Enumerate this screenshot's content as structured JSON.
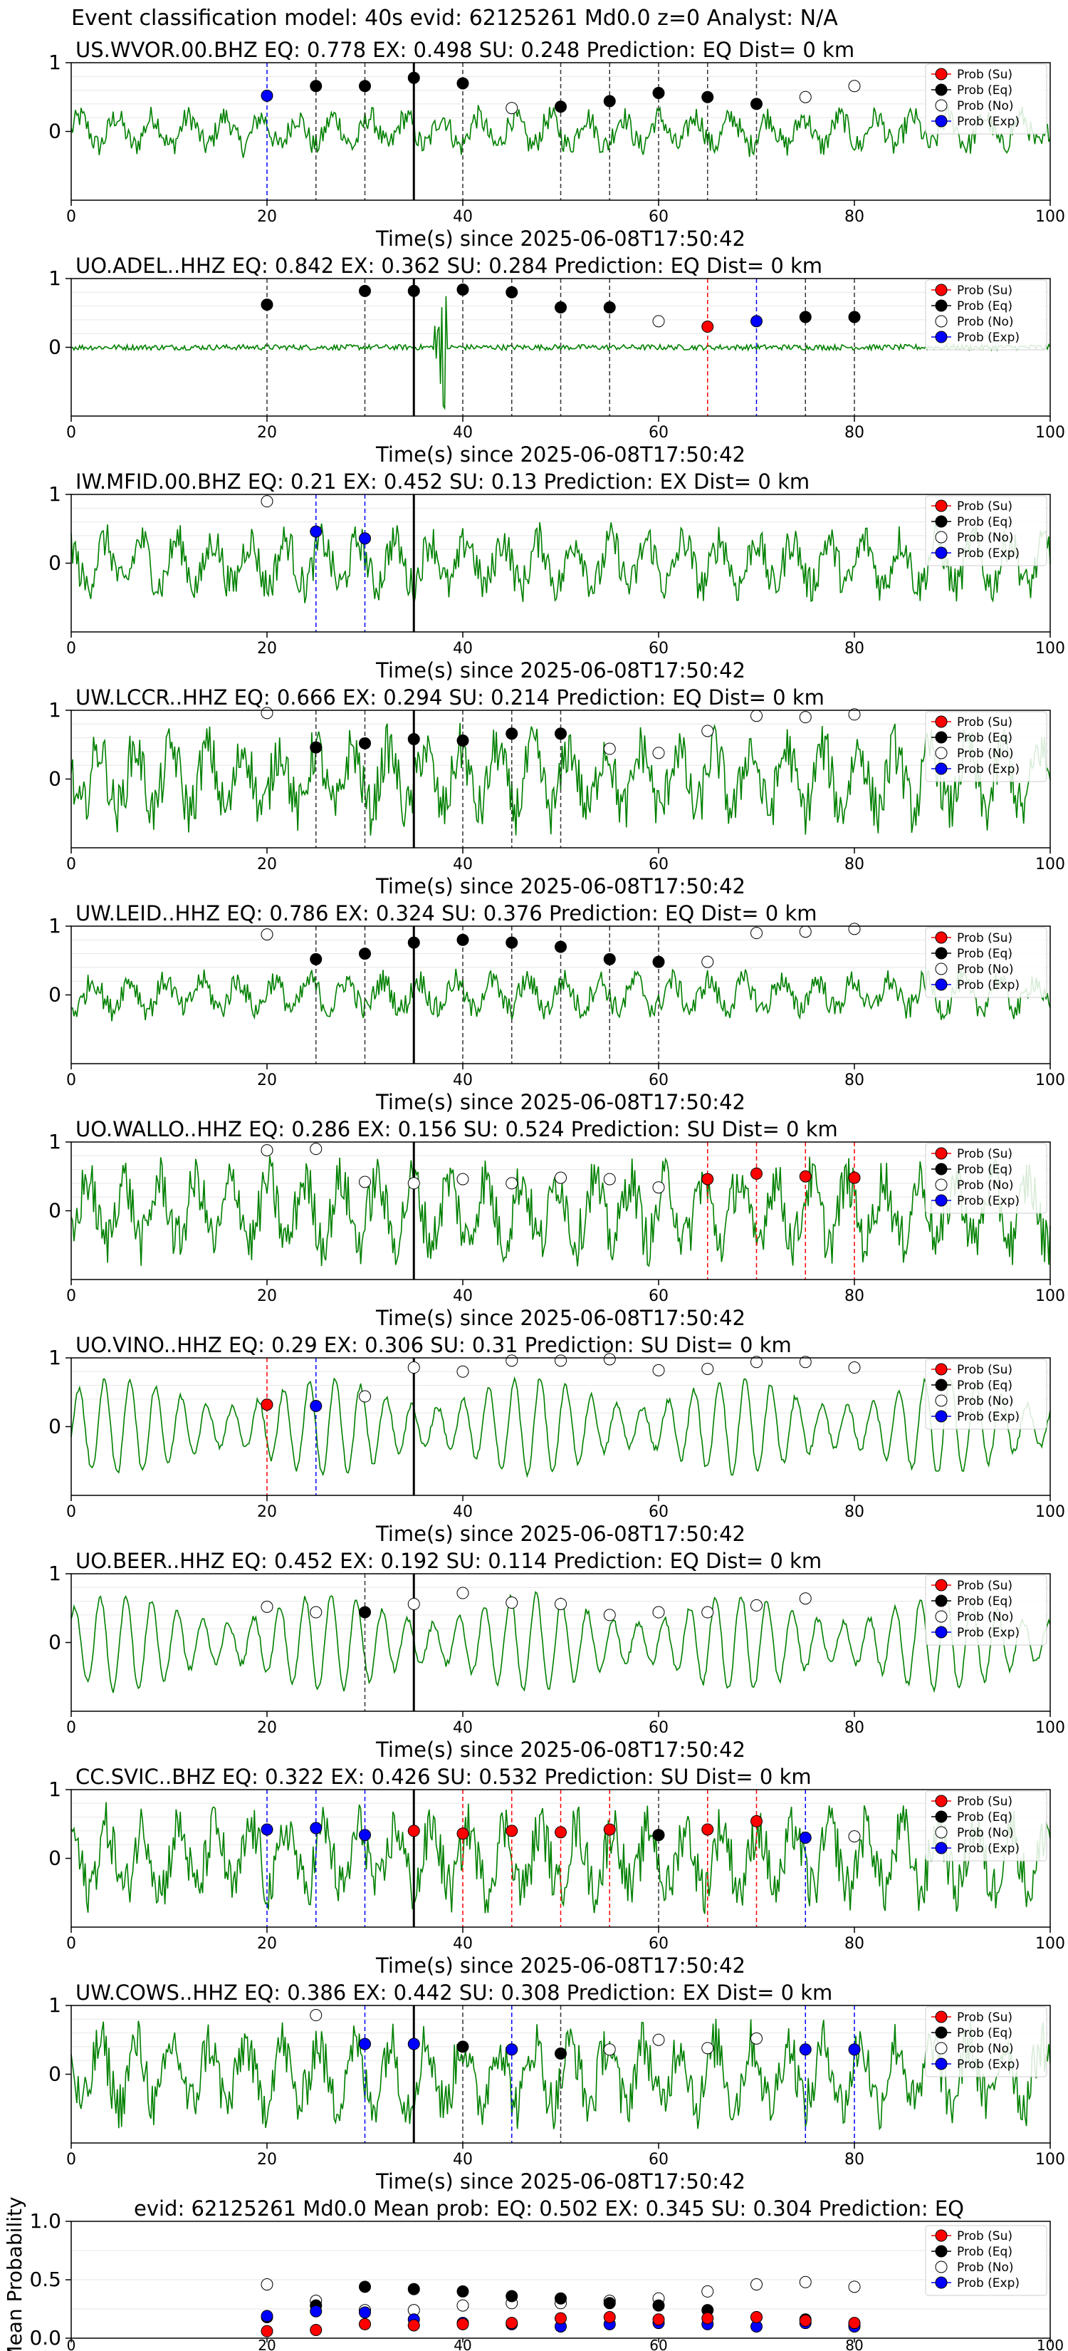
{
  "figure_title": "Event classification model: 40s evid: 62125261 Md0.0 z=0 Analyst: N/A",
  "xlabel": "Time(s) since 2025-06-08T17:50:42",
  "x_ticks": [
    0,
    20,
    40,
    60,
    80,
    100
  ],
  "legend": [
    "Prob (Su)",
    "Prob (Eq)",
    "Prob (No)",
    "Prob (Exp)"
  ],
  "colors": {
    "su": "#ff0000",
    "eq": "#000000",
    "no": "#ffffff",
    "exp": "#0000ff",
    "trace": "#008000"
  },
  "chart_data": [
    {
      "type": "scatter",
      "title": "US.WVOR.00.BHZ   EQ: 0.778  EX: 0.498  SU: 0.248   Prediction: EQ    Dist= 0 km",
      "xlim": [
        0,
        100
      ],
      "ylim": [
        -1,
        1
      ],
      "y_ticks": [
        0,
        1
      ],
      "arrival_line": 35,
      "noise": "low",
      "points": [
        {
          "x": 20,
          "y": 0.52,
          "cls": "exp"
        },
        {
          "x": 25,
          "y": 0.66,
          "cls": "eq"
        },
        {
          "x": 30,
          "y": 0.66,
          "cls": "eq"
        },
        {
          "x": 35,
          "y": 0.78,
          "cls": "eq"
        },
        {
          "x": 40,
          "y": 0.7,
          "cls": "eq"
        },
        {
          "x": 45,
          "y": 0.34,
          "cls": "no"
        },
        {
          "x": 50,
          "y": 0.36,
          "cls": "eq"
        },
        {
          "x": 55,
          "y": 0.44,
          "cls": "eq"
        },
        {
          "x": 60,
          "y": 0.56,
          "cls": "eq"
        },
        {
          "x": 65,
          "y": 0.5,
          "cls": "eq"
        },
        {
          "x": 70,
          "y": 0.4,
          "cls": "eq"
        },
        {
          "x": 75,
          "y": 0.5,
          "cls": "no"
        },
        {
          "x": 80,
          "y": 0.66,
          "cls": "no"
        }
      ]
    },
    {
      "type": "scatter",
      "title": "UO.ADEL..HHZ   EQ: 0.842  EX: 0.362  SU: 0.284   Prediction: EQ    Dist= 0 km",
      "xlim": [
        0,
        100
      ],
      "ylim": [
        -1,
        1
      ],
      "y_ticks": [
        0,
        1
      ],
      "arrival_line": 35,
      "noise": "flat",
      "points": [
        {
          "x": 20,
          "y": 0.62,
          "cls": "eq"
        },
        {
          "x": 30,
          "y": 0.82,
          "cls": "eq"
        },
        {
          "x": 35,
          "y": 0.82,
          "cls": "eq"
        },
        {
          "x": 40,
          "y": 0.84,
          "cls": "eq"
        },
        {
          "x": 45,
          "y": 0.8,
          "cls": "eq"
        },
        {
          "x": 50,
          "y": 0.58,
          "cls": "eq"
        },
        {
          "x": 55,
          "y": 0.58,
          "cls": "eq"
        },
        {
          "x": 60,
          "y": 0.38,
          "cls": "no"
        },
        {
          "x": 65,
          "y": 0.3,
          "cls": "su"
        },
        {
          "x": 70,
          "y": 0.38,
          "cls": "exp"
        },
        {
          "x": 75,
          "y": 0.44,
          "cls": "eq"
        },
        {
          "x": 80,
          "y": 0.44,
          "cls": "eq"
        }
      ]
    },
    {
      "type": "scatter",
      "title": "IW.MFID.00.BHZ   EQ: 0.21  EX: 0.452  SU: 0.13   Prediction: EX    Dist= 0 km",
      "xlim": [
        0,
        100
      ],
      "ylim": [
        -1,
        1
      ],
      "y_ticks": [
        0,
        1
      ],
      "arrival_line": 35,
      "noise": "mid",
      "points": [
        {
          "x": 20,
          "y": 0.9,
          "cls": "no"
        },
        {
          "x": 25,
          "y": 0.46,
          "cls": "exp"
        },
        {
          "x": 30,
          "y": 0.36,
          "cls": "exp"
        }
      ]
    },
    {
      "type": "scatter",
      "title": "UW.LCCR..HHZ   EQ: 0.666  EX: 0.294  SU: 0.214   Prediction: EQ    Dist= 0 km",
      "xlim": [
        0,
        100
      ],
      "ylim": [
        -1,
        1
      ],
      "y_ticks": [
        0,
        1
      ],
      "arrival_line": 35,
      "noise": "high",
      "points": [
        {
          "x": 20,
          "y": 0.96,
          "cls": "no"
        },
        {
          "x": 25,
          "y": 0.46,
          "cls": "eq"
        },
        {
          "x": 30,
          "y": 0.52,
          "cls": "eq"
        },
        {
          "x": 35,
          "y": 0.58,
          "cls": "eq"
        },
        {
          "x": 40,
          "y": 0.56,
          "cls": "eq"
        },
        {
          "x": 45,
          "y": 0.66,
          "cls": "eq"
        },
        {
          "x": 50,
          "y": 0.66,
          "cls": "eq"
        },
        {
          "x": 55,
          "y": 0.44,
          "cls": "no"
        },
        {
          "x": 60,
          "y": 0.38,
          "cls": "no"
        },
        {
          "x": 65,
          "y": 0.7,
          "cls": "no"
        },
        {
          "x": 70,
          "y": 0.92,
          "cls": "no"
        },
        {
          "x": 75,
          "y": 0.9,
          "cls": "no"
        },
        {
          "x": 80,
          "y": 0.94,
          "cls": "no"
        }
      ]
    },
    {
      "type": "scatter",
      "title": "UW.LEID..HHZ   EQ: 0.786  EX: 0.324  SU: 0.376   Prediction: EQ    Dist= 0 km",
      "xlim": [
        0,
        100
      ],
      "ylim": [
        -1,
        1
      ],
      "y_ticks": [
        0,
        1
      ],
      "arrival_line": 35,
      "noise": "low",
      "points": [
        {
          "x": 20,
          "y": 0.88,
          "cls": "no"
        },
        {
          "x": 25,
          "y": 0.52,
          "cls": "eq"
        },
        {
          "x": 30,
          "y": 0.6,
          "cls": "eq"
        },
        {
          "x": 35,
          "y": 0.76,
          "cls": "eq"
        },
        {
          "x": 40,
          "y": 0.8,
          "cls": "eq"
        },
        {
          "x": 45,
          "y": 0.76,
          "cls": "eq"
        },
        {
          "x": 50,
          "y": 0.7,
          "cls": "eq"
        },
        {
          "x": 55,
          "y": 0.52,
          "cls": "eq"
        },
        {
          "x": 60,
          "y": 0.48,
          "cls": "eq"
        },
        {
          "x": 65,
          "y": 0.48,
          "cls": "no"
        },
        {
          "x": 70,
          "y": 0.9,
          "cls": "no"
        },
        {
          "x": 75,
          "y": 0.92,
          "cls": "no"
        },
        {
          "x": 80,
          "y": 0.96,
          "cls": "no"
        }
      ]
    },
    {
      "type": "scatter",
      "title": "UO.WALLO..HHZ   EQ: 0.286  EX: 0.156  SU: 0.524   Prediction: SU    Dist= 0 km",
      "xlim": [
        0,
        100
      ],
      "ylim": [
        -1,
        1
      ],
      "y_ticks": [
        0,
        1
      ],
      "arrival_line": 35,
      "noise": "high",
      "points": [
        {
          "x": 20,
          "y": 0.88,
          "cls": "no"
        },
        {
          "x": 25,
          "y": 0.9,
          "cls": "no"
        },
        {
          "x": 30,
          "y": 0.42,
          "cls": "no"
        },
        {
          "x": 35,
          "y": 0.4,
          "cls": "no"
        },
        {
          "x": 40,
          "y": 0.46,
          "cls": "no"
        },
        {
          "x": 45,
          "y": 0.4,
          "cls": "no"
        },
        {
          "x": 50,
          "y": 0.48,
          "cls": "no"
        },
        {
          "x": 55,
          "y": 0.46,
          "cls": "no"
        },
        {
          "x": 60,
          "y": 0.34,
          "cls": "no"
        },
        {
          "x": 65,
          "y": 0.46,
          "cls": "su"
        },
        {
          "x": 70,
          "y": 0.54,
          "cls": "su"
        },
        {
          "x": 75,
          "y": 0.5,
          "cls": "su"
        },
        {
          "x": 80,
          "y": 0.48,
          "cls": "su"
        }
      ]
    },
    {
      "type": "scatter",
      "title": "UO.VINO..HHZ   EQ: 0.29  EX: 0.306  SU: 0.31   Prediction: SU    Dist= 0 km",
      "xlim": [
        0,
        100
      ],
      "ylim": [
        -1,
        1
      ],
      "y_ticks": [
        0,
        1
      ],
      "arrival_line": 35,
      "noise": "sine",
      "points": [
        {
          "x": 20,
          "y": 0.32,
          "cls": "su"
        },
        {
          "x": 25,
          "y": 0.3,
          "cls": "exp"
        },
        {
          "x": 30,
          "y": 0.44,
          "cls": "no"
        },
        {
          "x": 35,
          "y": 0.86,
          "cls": "no"
        },
        {
          "x": 40,
          "y": 0.8,
          "cls": "no"
        },
        {
          "x": 45,
          "y": 0.96,
          "cls": "no"
        },
        {
          "x": 50,
          "y": 0.96,
          "cls": "no"
        },
        {
          "x": 55,
          "y": 0.98,
          "cls": "no"
        },
        {
          "x": 60,
          "y": 0.82,
          "cls": "no"
        },
        {
          "x": 65,
          "y": 0.84,
          "cls": "no"
        },
        {
          "x": 70,
          "y": 0.94,
          "cls": "no"
        },
        {
          "x": 75,
          "y": 0.94,
          "cls": "no"
        },
        {
          "x": 80,
          "y": 0.86,
          "cls": "no"
        }
      ]
    },
    {
      "type": "scatter",
      "title": "UO.BEER..HHZ   EQ: 0.452  EX: 0.192  SU: 0.114   Prediction: EQ    Dist= 0 km",
      "xlim": [
        0,
        100
      ],
      "ylim": [
        -1,
        1
      ],
      "y_ticks": [
        0,
        1
      ],
      "arrival_line": 35,
      "noise": "sine",
      "points": [
        {
          "x": 20,
          "y": 0.52,
          "cls": "no"
        },
        {
          "x": 25,
          "y": 0.44,
          "cls": "no"
        },
        {
          "x": 30,
          "y": 0.44,
          "cls": "eq"
        },
        {
          "x": 35,
          "y": 0.56,
          "cls": "no"
        },
        {
          "x": 40,
          "y": 0.72,
          "cls": "no"
        },
        {
          "x": 45,
          "y": 0.58,
          "cls": "no"
        },
        {
          "x": 50,
          "y": 0.56,
          "cls": "no"
        },
        {
          "x": 55,
          "y": 0.4,
          "cls": "no"
        },
        {
          "x": 60,
          "y": 0.44,
          "cls": "no"
        },
        {
          "x": 65,
          "y": 0.44,
          "cls": "no"
        },
        {
          "x": 70,
          "y": 0.54,
          "cls": "no"
        },
        {
          "x": 75,
          "y": 0.64,
          "cls": "no"
        }
      ]
    },
    {
      "type": "scatter",
      "title": "CC.SVIC..BHZ   EQ: 0.322  EX: 0.426  SU: 0.532   Prediction: SU    Dist= 0 km",
      "xlim": [
        0,
        100
      ],
      "ylim": [
        -1,
        1
      ],
      "y_ticks": [
        0,
        1
      ],
      "arrival_line": 35,
      "noise": "high",
      "points": [
        {
          "x": 20,
          "y": 0.42,
          "cls": "exp"
        },
        {
          "x": 25,
          "y": 0.44,
          "cls": "exp"
        },
        {
          "x": 30,
          "y": 0.34,
          "cls": "exp"
        },
        {
          "x": 35,
          "y": 0.4,
          "cls": "su"
        },
        {
          "x": 40,
          "y": 0.36,
          "cls": "su"
        },
        {
          "x": 45,
          "y": 0.4,
          "cls": "su"
        },
        {
          "x": 50,
          "y": 0.38,
          "cls": "su"
        },
        {
          "x": 55,
          "y": 0.42,
          "cls": "su"
        },
        {
          "x": 60,
          "y": 0.34,
          "cls": "eq"
        },
        {
          "x": 65,
          "y": 0.42,
          "cls": "su"
        },
        {
          "x": 70,
          "y": 0.54,
          "cls": "su"
        },
        {
          "x": 75,
          "y": 0.3,
          "cls": "exp"
        },
        {
          "x": 80,
          "y": 0.32,
          "cls": "no"
        }
      ]
    },
    {
      "type": "scatter",
      "title": "UW.COWS..HHZ   EQ: 0.386  EX: 0.442  SU: 0.308   Prediction: EX    Dist= 0 km",
      "xlim": [
        0,
        100
      ],
      "ylim": [
        -1,
        1
      ],
      "y_ticks": [
        0,
        1
      ],
      "arrival_line": 35,
      "noise": "high",
      "points": [
        {
          "x": 25,
          "y": 0.86,
          "cls": "no"
        },
        {
          "x": 30,
          "y": 0.44,
          "cls": "exp"
        },
        {
          "x": 35,
          "y": 0.44,
          "cls": "exp"
        },
        {
          "x": 40,
          "y": 0.4,
          "cls": "eq"
        },
        {
          "x": 45,
          "y": 0.36,
          "cls": "exp"
        },
        {
          "x": 50,
          "y": 0.3,
          "cls": "eq"
        },
        {
          "x": 55,
          "y": 0.36,
          "cls": "no"
        },
        {
          "x": 60,
          "y": 0.5,
          "cls": "no"
        },
        {
          "x": 65,
          "y": 0.38,
          "cls": "no"
        },
        {
          "x": 70,
          "y": 0.52,
          "cls": "no"
        },
        {
          "x": 75,
          "y": 0.36,
          "cls": "exp"
        },
        {
          "x": 80,
          "y": 0.36,
          "cls": "exp"
        }
      ]
    },
    {
      "type": "scatter",
      "title": "evid: 62125261  Md0.0   Mean prob:   EQ: 0.502  EX: 0.345  SU: 0.304   Prediction: EQ",
      "ylabel": "Mean Probability",
      "xlim": [
        0,
        100
      ],
      "ylim": [
        0,
        1
      ],
      "y_ticks": [
        0.0,
        0.5,
        1.0
      ],
      "y_tick_labels": [
        "0.0",
        "0.5",
        "1.0"
      ],
      "x": [
        20,
        25,
        30,
        35,
        40,
        45,
        50,
        55,
        60,
        65,
        70,
        75,
        80
      ],
      "series": [
        {
          "name": "Prob (No)",
          "cls": "no",
          "values": [
            0.46,
            0.32,
            0.24,
            0.24,
            0.28,
            0.3,
            0.3,
            0.32,
            0.34,
            0.4,
            0.46,
            0.48,
            0.44
          ]
        },
        {
          "name": "Prob (Eq)",
          "cls": "eq",
          "values": [
            0.18,
            0.28,
            0.44,
            0.42,
            0.4,
            0.36,
            0.34,
            0.3,
            0.28,
            0.24,
            0.18,
            0.16,
            0.12
          ]
        },
        {
          "name": "Prob (Exp)",
          "cls": "exp",
          "values": [
            0.19,
            0.23,
            0.22,
            0.16,
            0.13,
            0.12,
            0.1,
            0.12,
            0.13,
            0.12,
            0.1,
            0.13,
            0.1
          ]
        },
        {
          "name": "Prob (Su)",
          "cls": "su",
          "values": [
            0.06,
            0.07,
            0.12,
            0.11,
            0.12,
            0.13,
            0.17,
            0.18,
            0.16,
            0.17,
            0.18,
            0.15,
            0.13
          ]
        }
      ]
    }
  ]
}
